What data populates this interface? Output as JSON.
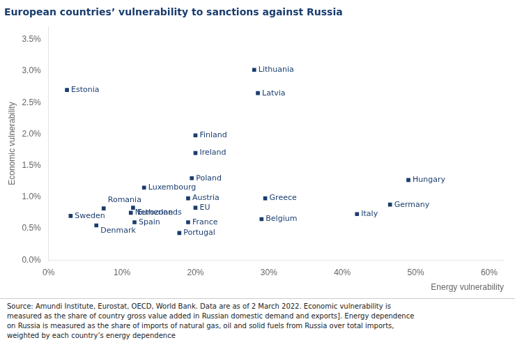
{
  "chart_data": {
    "type": "scatter",
    "title": "European countries’ vulnerability to sanctions against Russia",
    "xlabel": "Energy vulnerability",
    "ylabel": "Economic vulnerability",
    "source": "Source: Amundi Institute, Eurostat, OECD, World Bank. Data are as of 2 March 2022. Economic vulnerability is\nmeasured as the share of country gross value added in Russian domestic demand and exports]. Energy dependence\non Russia is measured as the share of imports of natural gas, oil and solid fuels from Russia over total imports,\nweighted by each country’s energy dependence",
    "labels": [
      "Estonia",
      "Sweden",
      "Denmark",
      "Romania",
      "Eurozone",
      "Netherlands",
      "Spain",
      "Luxembourg",
      "Austria",
      "EU",
      "France",
      "Portugal",
      "Poland",
      "Finland",
      "Ireland",
      "Lithuania",
      "Latvia",
      "Greece",
      "Belgium",
      "Italy",
      "Germany",
      "Hungary"
    ],
    "x": [
      0.025,
      0.03,
      0.065,
      0.075,
      0.115,
      0.112,
      0.117,
      0.13,
      0.19,
      0.2,
      0.19,
      0.178,
      0.195,
      0.2,
      0.2,
      0.28,
      0.285,
      0.295,
      0.29,
      0.42,
      0.465,
      0.49
    ],
    "values": [
      0.027,
      0.007,
      0.0055,
      0.0082,
      0.0083,
      0.0075,
      0.006,
      0.0115,
      0.0098,
      0.0083,
      0.006,
      0.0043,
      0.013,
      0.0198,
      0.017,
      0.0302,
      0.0265,
      0.0098,
      0.0065,
      0.0073,
      0.0088,
      0.0127
    ],
    "color": "#1a3d6e",
    "marker": "square",
    "xlim": [
      0,
      0.62
    ],
    "ylim": [
      0,
      0.037
    ],
    "xticks": [
      {
        "value": 0.0,
        "label": "0%"
      },
      {
        "value": 0.1,
        "label": "10%"
      },
      {
        "value": 0.2,
        "label": "20%"
      },
      {
        "value": 0.3,
        "label": "30%"
      },
      {
        "value": 0.4,
        "label": "40%"
      },
      {
        "value": 0.5,
        "label": "50%"
      },
      {
        "value": 0.6,
        "label": "60%"
      }
    ],
    "yticks": [
      {
        "value": 0.0,
        "label": "0.0%"
      },
      {
        "value": 0.005,
        "label": "0.5%"
      },
      {
        "value": 0.01,
        "label": "1.0%"
      },
      {
        "value": 0.015,
        "label": "1.5%"
      },
      {
        "value": 0.02,
        "label": "2.0%"
      },
      {
        "value": 0.025,
        "label": "2.5%"
      },
      {
        "value": 0.03,
        "label": "3.0%"
      },
      {
        "value": 0.035,
        "label": "3.5%"
      }
    ],
    "grid": false
  }
}
